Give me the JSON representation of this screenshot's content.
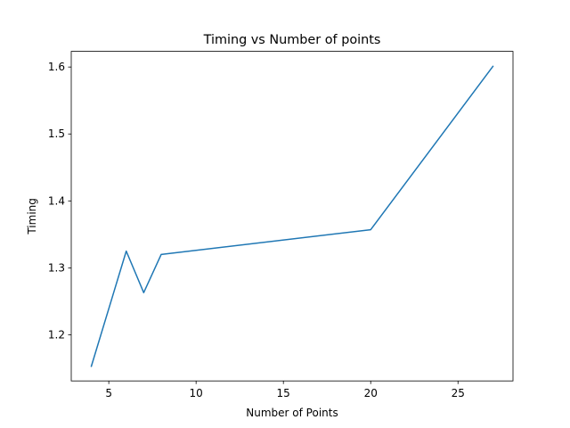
{
  "chart_data": {
    "type": "line",
    "title": "Timing vs Number of points",
    "xlabel": "Number of Points",
    "ylabel": "Timing",
    "xlim": [
      2.85,
      28.15
    ],
    "ylim": [
      1.1311,
      1.6234
    ],
    "xticks": [
      5,
      10,
      15,
      20,
      25
    ],
    "yticks": [
      1.2,
      1.3,
      1.4,
      1.5,
      1.6
    ],
    "xtick_labels": [
      "5",
      "10",
      "15",
      "20",
      "25"
    ],
    "ytick_labels": [
      "1.2",
      "1.3",
      "1.4",
      "1.5",
      "1.6"
    ],
    "grid": false,
    "series": [
      {
        "color": "#1f77b4",
        "x": [
          4,
          6,
          7,
          8,
          20,
          27
        ],
        "y": [
          1.153,
          1.325,
          1.263,
          1.32,
          1.357,
          1.601
        ]
      }
    ]
  }
}
